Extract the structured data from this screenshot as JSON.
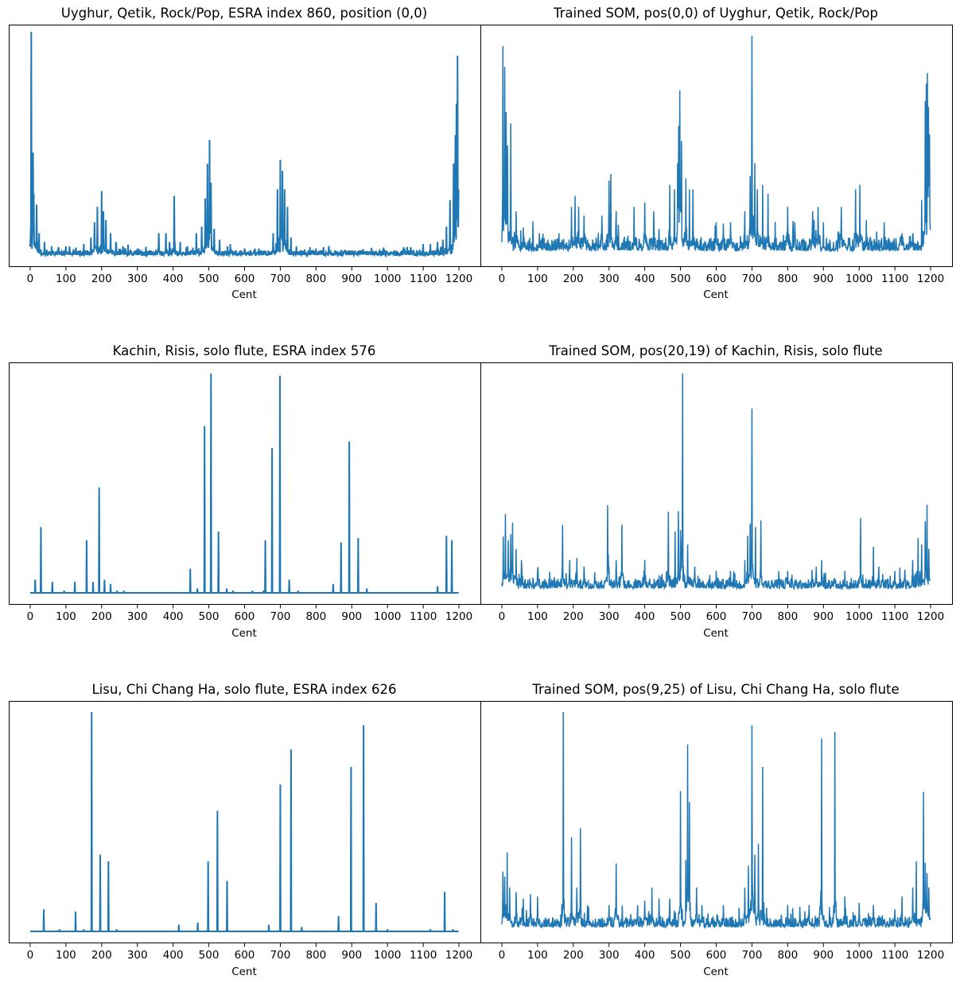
{
  "chart_data": [
    {
      "type": "line",
      "title": "Uyghur, Qetik, Rock/Pop, ESRA index 860, position (0,0)",
      "xlabel": "Cent",
      "xticks": [
        "0",
        "100",
        "200",
        "300",
        "400",
        "500",
        "600",
        "700",
        "800",
        "900",
        "1000",
        "1100",
        "1200"
      ],
      "xlim": [
        -60,
        1260
      ],
      "ylim": [
        0,
        1
      ],
      "color": "#1f77b4",
      "baseline": 0.0,
      "noise": 0.022,
      "seed": 11,
      "peaks": [
        [
          3,
          1.0
        ],
        [
          8,
          0.43
        ],
        [
          10,
          0.28
        ],
        [
          18,
          0.23
        ],
        [
          25,
          0.1
        ],
        [
          40,
          0.06
        ],
        [
          60,
          0.04
        ],
        [
          100,
          0.04
        ],
        [
          150,
          0.05
        ],
        [
          170,
          0.08
        ],
        [
          180,
          0.15
        ],
        [
          188,
          0.22
        ],
        [
          200,
          0.28
        ],
        [
          205,
          0.2
        ],
        [
          212,
          0.16
        ],
        [
          225,
          0.1
        ],
        [
          240,
          0.06
        ],
        [
          260,
          0.04
        ],
        [
          300,
          0.03
        ],
        [
          360,
          0.1
        ],
        [
          380,
          0.1
        ],
        [
          390,
          0.06
        ],
        [
          403,
          0.27
        ],
        [
          420,
          0.06
        ],
        [
          440,
          0.04
        ],
        [
          465,
          0.1
        ],
        [
          480,
          0.13
        ],
        [
          490,
          0.24
        ],
        [
          496,
          0.4
        ],
        [
          502,
          0.5
        ],
        [
          506,
          0.33
        ],
        [
          515,
          0.12
        ],
        [
          530,
          0.07
        ],
        [
          560,
          0.05
        ],
        [
          600,
          0.03
        ],
        [
          640,
          0.03
        ],
        [
          680,
          0.1
        ],
        [
          692,
          0.3
        ],
        [
          700,
          0.43
        ],
        [
          706,
          0.38
        ],
        [
          712,
          0.3
        ],
        [
          720,
          0.22
        ],
        [
          730,
          0.08
        ],
        [
          745,
          0.04
        ],
        [
          800,
          0.03
        ],
        [
          880,
          0.02
        ],
        [
          900,
          0.02
        ],
        [
          950,
          0.01
        ],
        [
          1100,
          0.05
        ],
        [
          1120,
          0.05
        ],
        [
          1140,
          0.06
        ],
        [
          1155,
          0.07
        ],
        [
          1165,
          0.13
        ],
        [
          1175,
          0.25
        ],
        [
          1185,
          0.39
        ],
        [
          1190,
          0.5
        ],
        [
          1193,
          0.65
        ],
        [
          1196,
          0.88
        ],
        [
          1199,
          0.3
        ]
      ],
      "line_width": 2.0
    },
    {
      "type": "line",
      "title": "Trained SOM, pos(0,0) of Uyghur, Qetik, Rock/Pop",
      "xlabel": "Cent",
      "xticks": [
        "0",
        "100",
        "200",
        "300",
        "400",
        "500",
        "600",
        "700",
        "800",
        "900",
        "1000",
        "1100",
        "1200"
      ],
      "xlim": [
        -60,
        1260
      ],
      "ylim": [
        0,
        1
      ],
      "color": "#1f77b4",
      "baseline": 0.02,
      "noise": 0.06,
      "seed": 23,
      "peaks": [
        [
          3,
          0.95
        ],
        [
          8,
          0.85
        ],
        [
          12,
          0.65
        ],
        [
          16,
          0.5
        ],
        [
          25,
          0.6
        ],
        [
          40,
          0.2
        ],
        [
          60,
          0.12
        ],
        [
          105,
          0.1
        ],
        [
          160,
          0.1
        ],
        [
          195,
          0.22
        ],
        [
          205,
          0.27
        ],
        [
          215,
          0.22
        ],
        [
          230,
          0.18
        ],
        [
          280,
          0.18
        ],
        [
          300,
          0.32
        ],
        [
          305,
          0.37
        ],
        [
          320,
          0.2
        ],
        [
          370,
          0.22
        ],
        [
          400,
          0.24
        ],
        [
          425,
          0.2
        ],
        [
          470,
          0.32
        ],
        [
          483,
          0.3
        ],
        [
          492,
          0.4
        ],
        [
          495,
          0.58
        ],
        [
          498,
          0.72
        ],
        [
          503,
          0.52
        ],
        [
          515,
          0.35
        ],
        [
          525,
          0.3
        ],
        [
          535,
          0.3
        ],
        [
          600,
          0.15
        ],
        [
          640,
          0.15
        ],
        [
          680,
          0.2
        ],
        [
          695,
          0.3
        ],
        [
          700,
          1.0
        ],
        [
          708,
          0.42
        ],
        [
          715,
          0.3
        ],
        [
          730,
          0.32
        ],
        [
          745,
          0.28
        ],
        [
          800,
          0.22
        ],
        [
          820,
          0.15
        ],
        [
          870,
          0.2
        ],
        [
          885,
          0.22
        ],
        [
          900,
          0.15
        ],
        [
          950,
          0.22
        ],
        [
          990,
          0.3
        ],
        [
          1002,
          0.32
        ],
        [
          1020,
          0.16
        ],
        [
          1070,
          0.15
        ],
        [
          1120,
          0.1
        ],
        [
          1150,
          0.1
        ],
        [
          1175,
          0.25
        ],
        [
          1185,
          0.62
        ],
        [
          1188,
          0.7
        ],
        [
          1191,
          0.78
        ],
        [
          1194,
          0.66
        ],
        [
          1197,
          0.55
        ]
      ],
      "line_width": 1.5
    },
    {
      "type": "line",
      "title": "Kachin, Risis, solo flute, ESRA index 576",
      "xlabel": "Cent",
      "xticks": [
        "0",
        "100",
        "200",
        "300",
        "400",
        "500",
        "600",
        "700",
        "800",
        "900",
        "1000",
        "1100",
        "1200"
      ],
      "xlim": [
        -60,
        1260
      ],
      "ylim": [
        0,
        1
      ],
      "color": "#1f77b4",
      "baseline": 0.0,
      "noise": 0.0,
      "seed": 5,
      "peaks": [
        [
          14,
          0.06
        ],
        [
          30,
          0.3
        ],
        [
          62,
          0.05
        ],
        [
          95,
          0.01
        ],
        [
          125,
          0.05
        ],
        [
          158,
          0.24
        ],
        [
          176,
          0.05
        ],
        [
          193,
          0.48
        ],
        [
          208,
          0.06
        ],
        [
          225,
          0.04
        ],
        [
          243,
          0.01
        ],
        [
          262,
          0.01
        ],
        [
          448,
          0.11
        ],
        [
          468,
          0.02
        ],
        [
          488,
          0.76
        ],
        [
          506,
          1.0
        ],
        [
          527,
          0.28
        ],
        [
          550,
          0.02
        ],
        [
          568,
          0.01
        ],
        [
          622,
          0.01
        ],
        [
          653,
          0.01
        ],
        [
          658,
          0.24
        ],
        [
          677,
          0.66
        ],
        [
          699,
          0.99
        ],
        [
          725,
          0.06
        ],
        [
          750,
          0.01
        ],
        [
          848,
          0.04
        ],
        [
          870,
          0.23
        ],
        [
          893,
          0.69
        ],
        [
          918,
          0.25
        ],
        [
          942,
          0.02
        ],
        [
          1140,
          0.03
        ],
        [
          1165,
          0.26
        ],
        [
          1180,
          0.24
        ]
      ],
      "line_width": 2.0
    },
    {
      "type": "line",
      "title": "Trained SOM, pos(20,19) of Kachin, Risis, solo flute",
      "xlabel": "Cent",
      "xticks": [
        "0",
        "100",
        "200",
        "300",
        "400",
        "500",
        "600",
        "700",
        "800",
        "900",
        "1000",
        "1100",
        "1200"
      ],
      "xlim": [
        -60,
        1260
      ],
      "ylim": [
        0,
        1
      ],
      "color": "#1f77b4",
      "baseline": 0.02,
      "noise": 0.045,
      "seed": 37,
      "peaks": [
        [
          4,
          0.25
        ],
        [
          10,
          0.36
        ],
        [
          18,
          0.24
        ],
        [
          25,
          0.25
        ],
        [
          30,
          0.32
        ],
        [
          40,
          0.2
        ],
        [
          55,
          0.15
        ],
        [
          100,
          0.1
        ],
        [
          170,
          0.31
        ],
        [
          190,
          0.15
        ],
        [
          210,
          0.16
        ],
        [
          230,
          0.12
        ],
        [
          296,
          0.4
        ],
        [
          320,
          0.15
        ],
        [
          336,
          0.31
        ],
        [
          400,
          0.15
        ],
        [
          466,
          0.37
        ],
        [
          485,
          0.28
        ],
        [
          494,
          0.36
        ],
        [
          500,
          0.28
        ],
        [
          506,
          1.0
        ],
        [
          520,
          0.22
        ],
        [
          540,
          0.12
        ],
        [
          600,
          0.1
        ],
        [
          640,
          0.1
        ],
        [
          680,
          0.15
        ],
        [
          688,
          0.26
        ],
        [
          695,
          0.3
        ],
        [
          700,
          0.84
        ],
        [
          710,
          0.3
        ],
        [
          725,
          0.33
        ],
        [
          800,
          0.1
        ],
        [
          880,
          0.12
        ],
        [
          895,
          0.15
        ],
        [
          960,
          0.1
        ],
        [
          1004,
          0.34
        ],
        [
          1040,
          0.21
        ],
        [
          1055,
          0.12
        ],
        [
          1100,
          0.1
        ],
        [
          1150,
          0.15
        ],
        [
          1165,
          0.25
        ],
        [
          1175,
          0.22
        ],
        [
          1185,
          0.32
        ],
        [
          1190,
          0.4
        ],
        [
          1195,
          0.2
        ]
      ],
      "line_width": 1.5
    },
    {
      "type": "line",
      "title": "Lisu, Chi Chang Ha, solo flute, ESRA index 626",
      "xlabel": "Cent",
      "xticks": [
        "0",
        "100",
        "200",
        "300",
        "400",
        "500",
        "600",
        "700",
        "800",
        "900",
        "1000",
        "1100",
        "1200"
      ],
      "xlim": [
        -60,
        1260
      ],
      "ylim": [
        0,
        1
      ],
      "color": "#1f77b4",
      "baseline": 0.0,
      "noise": 0.0,
      "seed": 9,
      "peaks": [
        [
          38,
          0.1
        ],
        [
          82,
          0.01
        ],
        [
          127,
          0.09
        ],
        [
          150,
          0.01
        ],
        [
          172,
          1.0
        ],
        [
          196,
          0.35
        ],
        [
          219,
          0.32
        ],
        [
          242,
          0.01
        ],
        [
          416,
          0.03
        ],
        [
          469,
          0.04
        ],
        [
          498,
          0.32
        ],
        [
          524,
          0.55
        ],
        [
          551,
          0.23
        ],
        [
          668,
          0.03
        ],
        [
          700,
          0.67
        ],
        [
          730,
          0.83
        ],
        [
          760,
          0.02
        ],
        [
          863,
          0.07
        ],
        [
          898,
          0.75
        ],
        [
          933,
          0.94
        ],
        [
          968,
          0.13
        ],
        [
          1000,
          0.01
        ],
        [
          1120,
          0.01
        ],
        [
          1160,
          0.18
        ],
        [
          1183,
          0.01
        ]
      ],
      "line_width": 2.0
    },
    {
      "type": "line",
      "title": "Trained SOM, pos(9,25) of Lisu, Chi Chang Ha, solo flute",
      "xlabel": "Cent",
      "xticks": [
        "0",
        "100",
        "200",
        "300",
        "400",
        "500",
        "600",
        "700",
        "800",
        "900",
        "1000",
        "1100",
        "1200"
      ],
      "xlim": [
        -60,
        1260
      ],
      "ylim": [
        0,
        1
      ],
      "color": "#1f77b4",
      "baseline": 0.02,
      "noise": 0.045,
      "seed": 51,
      "peaks": [
        [
          3,
          0.26
        ],
        [
          8,
          0.25
        ],
        [
          15,
          0.36
        ],
        [
          22,
          0.2
        ],
        [
          40,
          0.18
        ],
        [
          60,
          0.15
        ],
        [
          80,
          0.17
        ],
        [
          100,
          0.16
        ],
        [
          172,
          1.0
        ],
        [
          195,
          0.43
        ],
        [
          210,
          0.2
        ],
        [
          220,
          0.47
        ],
        [
          240,
          0.12
        ],
        [
          300,
          0.12
        ],
        [
          320,
          0.31
        ],
        [
          380,
          0.12
        ],
        [
          400,
          0.14
        ],
        [
          420,
          0.2
        ],
        [
          440,
          0.15
        ],
        [
          470,
          0.15
        ],
        [
          500,
          0.64
        ],
        [
          515,
          0.3
        ],
        [
          520,
          0.83
        ],
        [
          525,
          0.59
        ],
        [
          545,
          0.2
        ],
        [
          560,
          0.12
        ],
        [
          620,
          0.12
        ],
        [
          680,
          0.2
        ],
        [
          690,
          0.3
        ],
        [
          700,
          0.94
        ],
        [
          708,
          0.35
        ],
        [
          718,
          0.4
        ],
        [
          730,
          0.75
        ],
        [
          800,
          0.12
        ],
        [
          860,
          0.12
        ],
        [
          895,
          0.88
        ],
        [
          932,
          0.91
        ],
        [
          960,
          0.16
        ],
        [
          1000,
          0.13
        ],
        [
          1040,
          0.12
        ],
        [
          1100,
          0.1
        ],
        [
          1120,
          0.16
        ],
        [
          1150,
          0.2
        ],
        [
          1160,
          0.32
        ],
        [
          1180,
          0.62
        ],
        [
          1185,
          0.3
        ],
        [
          1190,
          0.26
        ],
        [
          1195,
          0.2
        ]
      ],
      "line_width": 1.5
    }
  ]
}
